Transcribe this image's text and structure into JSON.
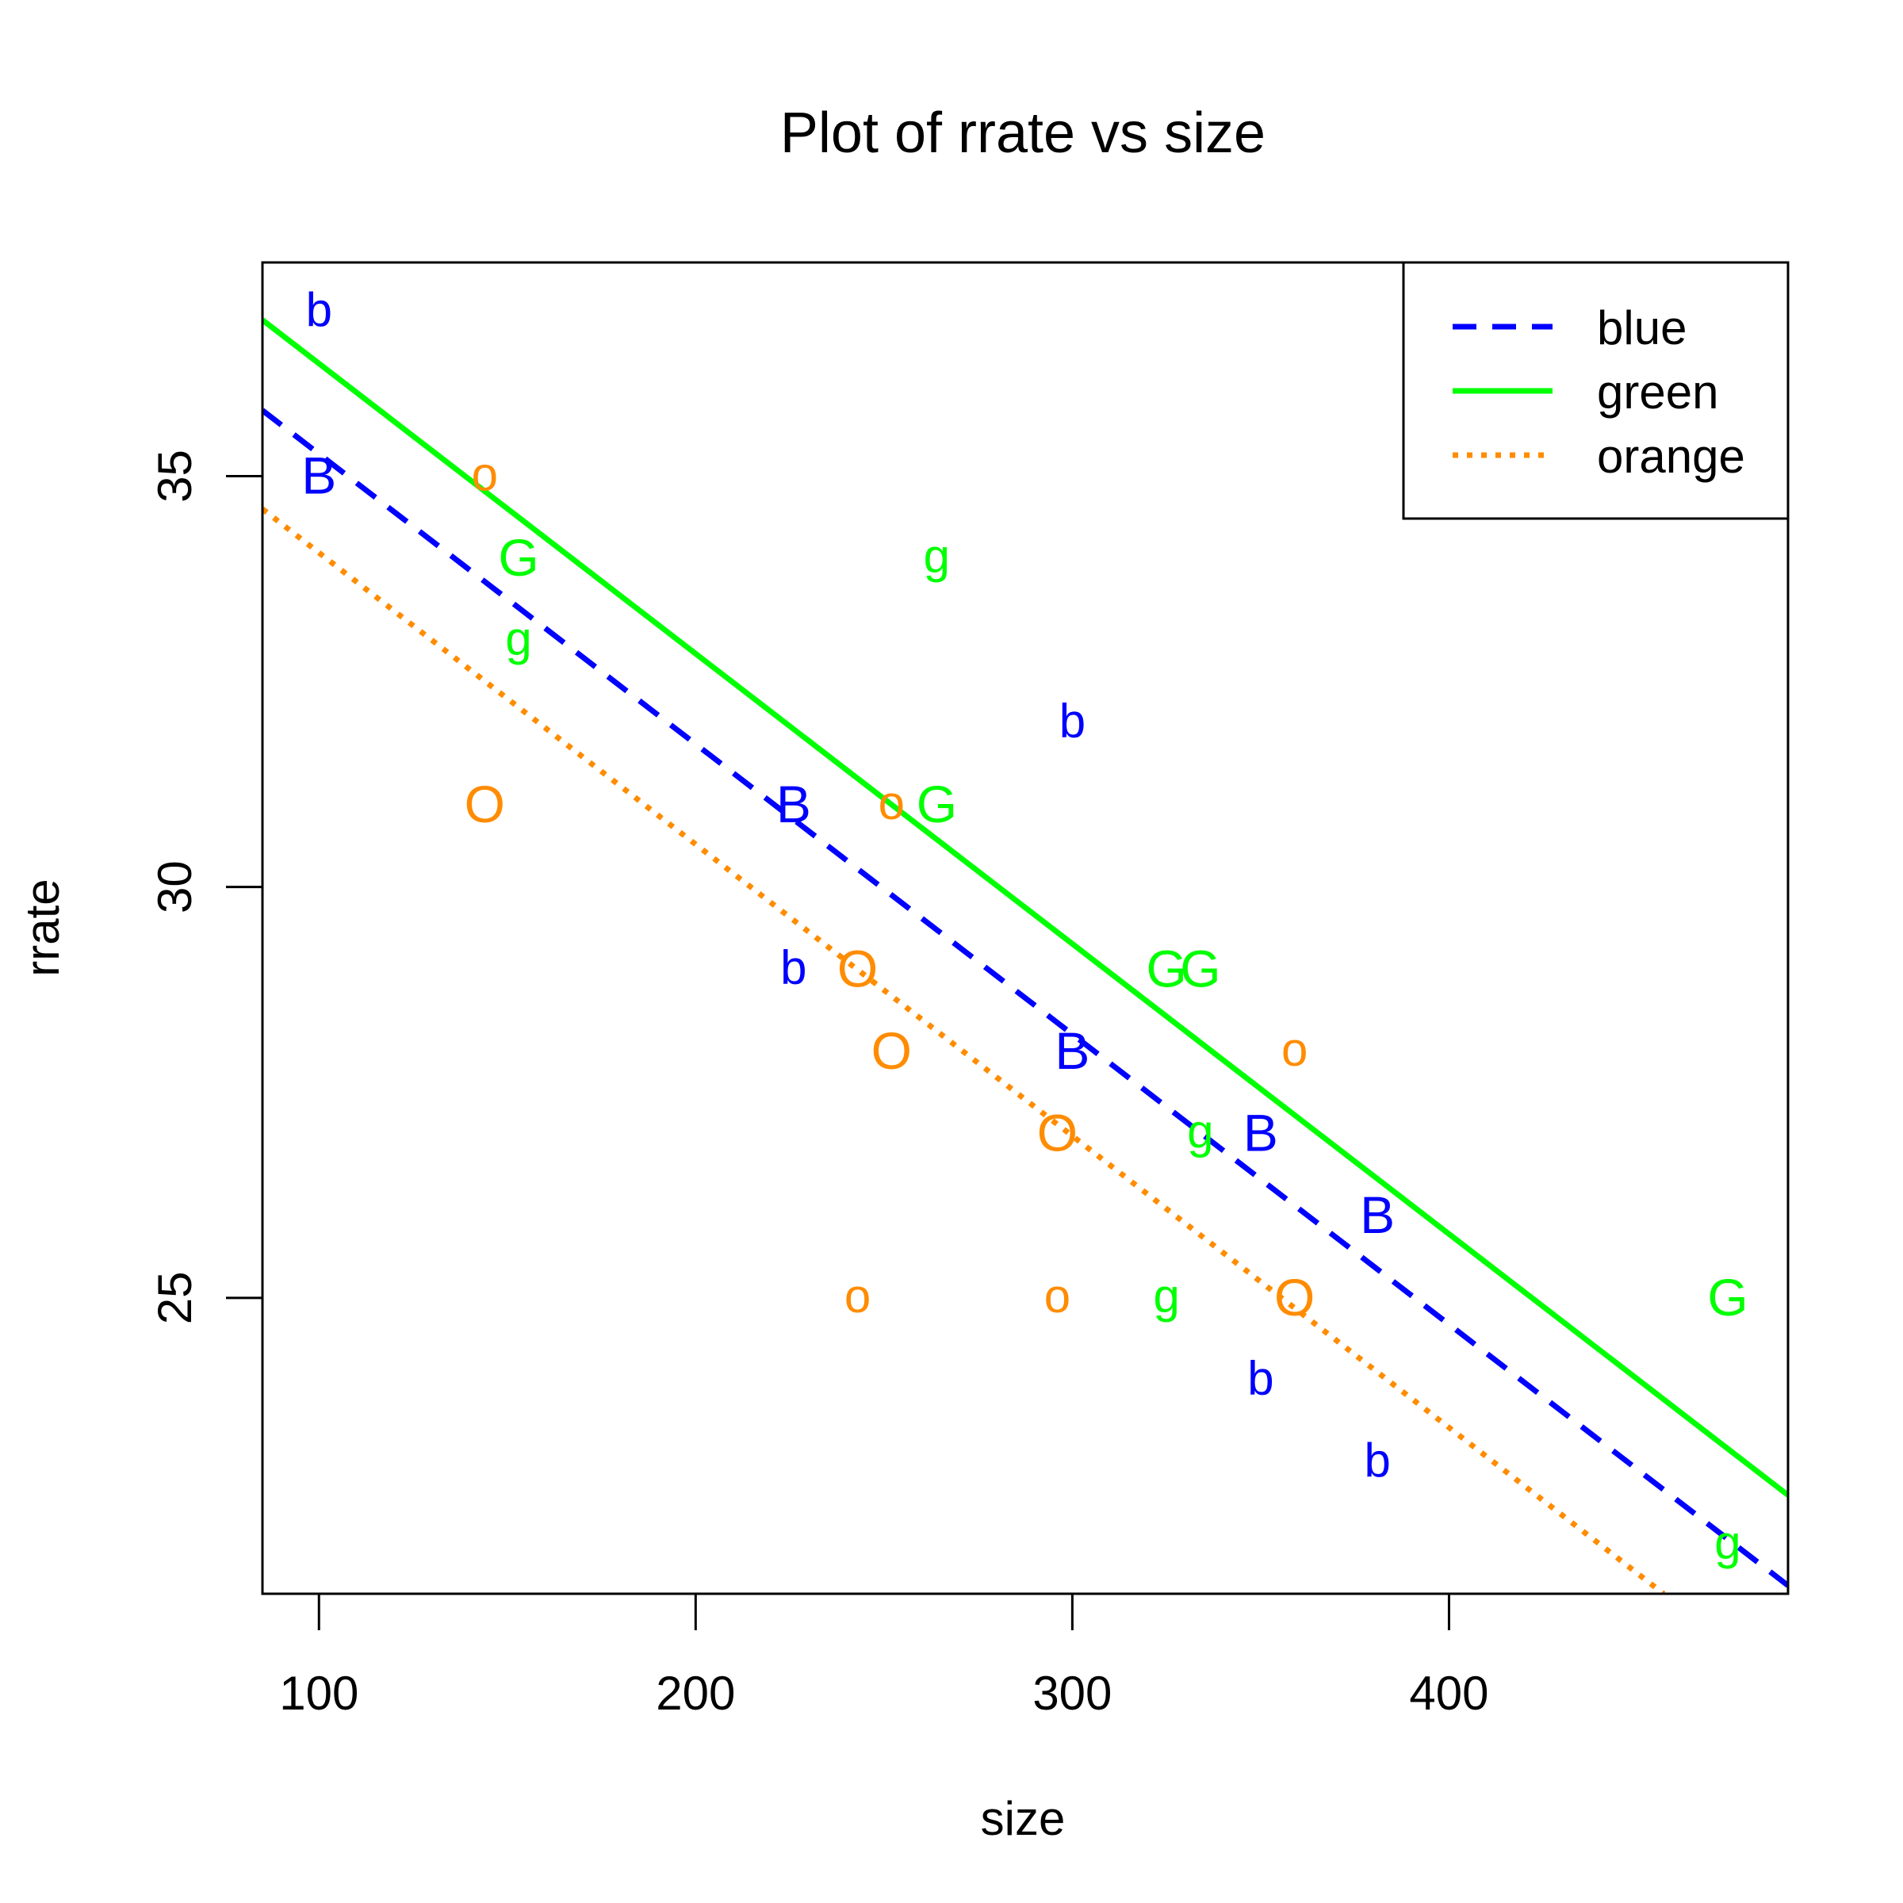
{
  "chart_data": {
    "type": "scatter",
    "title": "Plot of rrate vs size",
    "xlabel": "size",
    "ylabel": "rrate",
    "xlim": [
      85,
      490
    ],
    "ylim": [
      21.4,
      37.6
    ],
    "x_ticks": [
      100,
      200,
      300,
      400
    ],
    "y_ticks": [
      25,
      30,
      35
    ],
    "x_tick_labels": [
      "100",
      "200",
      "300",
      "400"
    ],
    "y_tick_labels": [
      "25",
      "30",
      "35"
    ],
    "grid": false,
    "legend_position": "top-right",
    "colors": {
      "blue": "#0000ff",
      "green": "#00ff00",
      "orange": "#ff8c00"
    },
    "series": [
      {
        "name": "blue",
        "color": "#0000ff",
        "line_style": "dashed",
        "points": [
          {
            "x": 100,
            "y": 37,
            "label": "b"
          },
          {
            "x": 100,
            "y": 35,
            "label": "B"
          },
          {
            "x": 226,
            "y": 31,
            "label": "B"
          },
          {
            "x": 226,
            "y": 29,
            "label": "b"
          },
          {
            "x": 300,
            "y": 32,
            "label": "b"
          },
          {
            "x": 300,
            "y": 28,
            "label": "B"
          },
          {
            "x": 350,
            "y": 27,
            "label": "B"
          },
          {
            "x": 350,
            "y": 24,
            "label": "b"
          },
          {
            "x": 381,
            "y": 26,
            "label": "B"
          },
          {
            "x": 381,
            "y": 23,
            "label": "b"
          }
        ],
        "fit": {
          "x": [
            85,
            490
          ],
          "y": [
            35.8,
            21.5
          ]
        }
      },
      {
        "name": "green",
        "color": "#00ff00",
        "line_style": "solid",
        "points": [
          {
            "x": 153,
            "y": 34,
            "label": "G"
          },
          {
            "x": 153,
            "y": 33,
            "label": "g"
          },
          {
            "x": 264,
            "y": 34,
            "label": "g"
          },
          {
            "x": 264,
            "y": 31,
            "label": "G"
          },
          {
            "x": 325,
            "y": 29,
            "label": "G"
          },
          {
            "x": 334,
            "y": 29,
            "label": "G"
          },
          {
            "x": 334,
            "y": 27,
            "label": "g"
          },
          {
            "x": 325,
            "y": 25,
            "label": "g"
          },
          {
            "x": 474,
            "y": 25,
            "label": "G"
          },
          {
            "x": 474,
            "y": 22,
            "label": "g"
          }
        ],
        "fit": {
          "x": [
            85,
            490
          ],
          "y": [
            36.9,
            22.6
          ]
        }
      },
      {
        "name": "orange",
        "color": "#ff8c00",
        "line_style": "dotted",
        "points": [
          {
            "x": 144,
            "y": 35,
            "label": "o"
          },
          {
            "x": 144,
            "y": 31,
            "label": "O"
          },
          {
            "x": 252,
            "y": 31,
            "label": "o"
          },
          {
            "x": 243,
            "y": 29,
            "label": "O"
          },
          {
            "x": 252,
            "y": 28,
            "label": "O"
          },
          {
            "x": 243,
            "y": 25,
            "label": "o"
          },
          {
            "x": 296,
            "y": 27,
            "label": "O"
          },
          {
            "x": 296,
            "y": 25,
            "label": "o"
          },
          {
            "x": 359,
            "y": 28,
            "label": "o"
          },
          {
            "x": 359,
            "y": 25,
            "label": "O"
          }
        ],
        "fit": {
          "x": [
            85,
            457
          ],
          "y": [
            34.6,
            21.4
          ]
        }
      }
    ]
  }
}
